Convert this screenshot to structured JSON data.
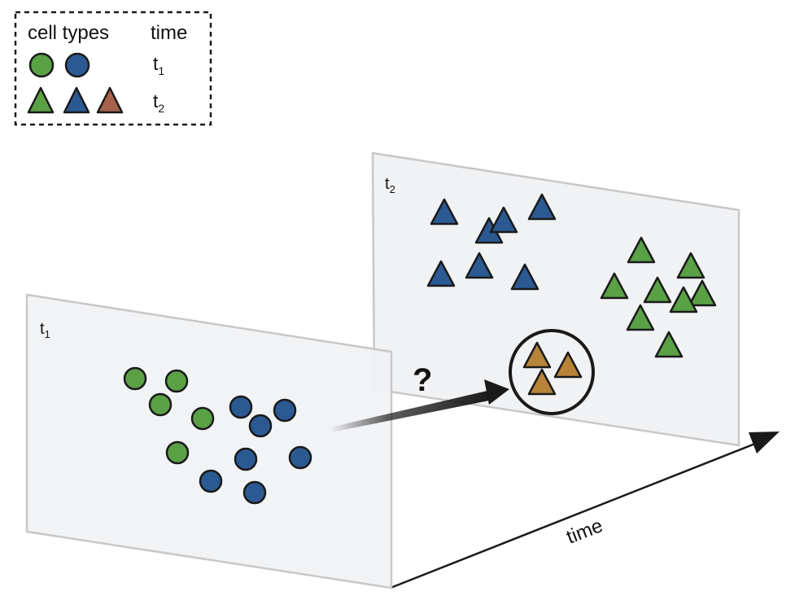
{
  "legend": {
    "header_cell_types": "cell types",
    "header_time": "time",
    "row1_time": "t1",
    "row2_time": "t2"
  },
  "panels": {
    "t1_label": "t1",
    "t2_label": "t2"
  },
  "annotations": {
    "question": "?",
    "time_axis": "time"
  },
  "colors": {
    "green": "#5aa146",
    "blue": "#2b5a93",
    "brown": "#b8843a",
    "legend_brown": "#a5614a",
    "panel_fill": "#f1f2f4",
    "panel_stroke": "#c8c8c8",
    "outline": "#1a1a1a"
  },
  "icons": {
    "circle_cell": "circle-cell-icon",
    "triangle_cell": "triangle-cell-icon"
  }
}
